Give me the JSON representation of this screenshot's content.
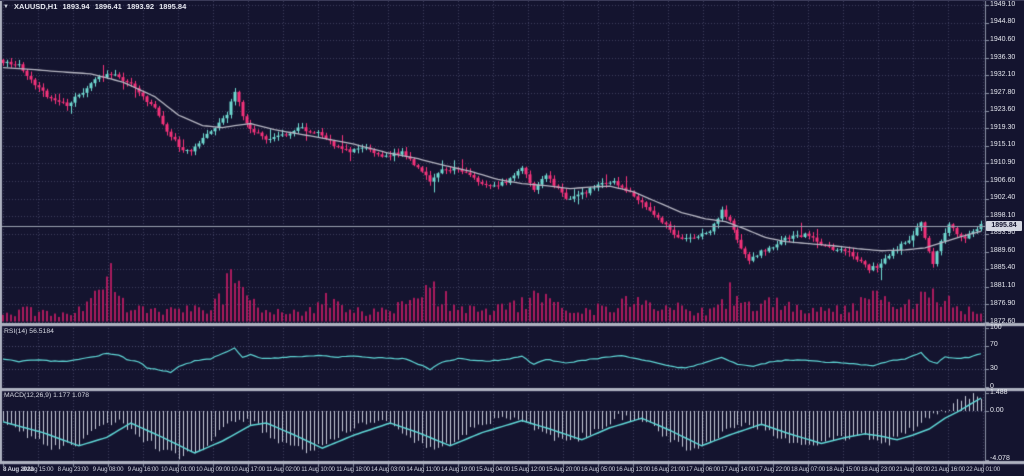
{
  "header": {
    "symbol_period": "XAUUSD,H1",
    "open": "1893.94",
    "high": "1896.41",
    "low": "1893.92",
    "close": "1895.84"
  },
  "colors": {
    "background": "#14142f",
    "grid": "#3d3d5e",
    "bull": "#6fd8d0",
    "bear": "#f4327a",
    "volume": "#a81b5d",
    "ma": "#b6b6c2",
    "indicator_line": "#5fd6d6",
    "histogram": "#c6cad8",
    "separator": "#aeb2c0",
    "axis_text": "#e6e8f0",
    "axis_line": "#8c93a6",
    "price_line": "#9aa0b0",
    "level_line": "#4a4a6e"
  },
  "chart_data": {
    "type": "candlestick",
    "symbol": "XAUUSD",
    "timeframe": "H1",
    "title": "XAUUSD,H1 1893.94 1896.41 1893.92 1895.84",
    "current_price": 1895.84,
    "price_axis": {
      "max": 1949.1,
      "min": 1872.6,
      "labels": [
        "1949.10",
        "1944.80",
        "1940.60",
        "1936.30",
        "1932.10",
        "1927.80",
        "1923.60",
        "1919.30",
        "1915.10",
        "1910.90",
        "1906.60",
        "1902.40",
        "1898.10",
        "1893.90",
        "1889.60",
        "1885.40",
        "1881.10",
        "1876.90",
        "1872.60"
      ],
      "values": [
        1949.1,
        1944.8,
        1940.6,
        1936.3,
        1932.1,
        1927.8,
        1923.6,
        1919.3,
        1915.1,
        1910.9,
        1906.6,
        1902.4,
        1898.1,
        1893.9,
        1889.6,
        1885.4,
        1881.1,
        1876.9,
        1872.6
      ]
    },
    "time_axis": {
      "labels": [
        "8 Aug 2023",
        "8 Aug 15:00",
        "8 Aug 23:00",
        "9 Aug 08:00",
        "9 Aug 16:00",
        "10 Aug 01:00",
        "10 Aug 09:00",
        "10 Aug 17:00",
        "11 Aug 02:00",
        "11 Aug 10:00",
        "11 Aug 18:00",
        "14 Aug 03:00",
        "14 Aug 11:00",
        "14 Aug 19:00",
        "15 Aug 04:00",
        "15 Aug 12:00",
        "15 Aug 20:00",
        "16 Aug 05:00",
        "16 Aug 13:00",
        "16 Aug 21:00",
        "17 Aug 06:00",
        "17 Aug 14:00",
        "17 Aug 22:00",
        "18 Aug 07:00",
        "18 Aug 15:00",
        "18 Aug 23:00",
        "21 Aug 08:00",
        "21 Aug 16:00",
        "22 Aug 01:00"
      ]
    },
    "candles": {
      "count": 246,
      "seed": 20230822,
      "close_waypoints": [
        [
          0,
          1935.5
        ],
        [
          4,
          1934.5
        ],
        [
          8,
          1929.5
        ],
        [
          12,
          1926.5
        ],
        [
          16,
          1925
        ],
        [
          20,
          1928
        ],
        [
          24,
          1932
        ],
        [
          28,
          1932.5
        ],
        [
          32,
          1930
        ],
        [
          35,
          1927
        ],
        [
          38,
          1924
        ],
        [
          41,
          1919
        ],
        [
          44,
          1915
        ],
        [
          47,
          1913.5
        ],
        [
          50,
          1917
        ],
        [
          53,
          1919.5
        ],
        [
          56,
          1922.5
        ],
        [
          58,
          1928.5
        ],
        [
          60,
          1922
        ],
        [
          63,
          1918.5
        ],
        [
          66,
          1917
        ],
        [
          70,
          1917.5
        ],
        [
          74,
          1919.5
        ],
        [
          79,
          1918
        ],
        [
          83,
          1915.5
        ],
        [
          87,
          1914
        ],
        [
          91,
          1914.5
        ],
        [
          96,
          1912.5
        ],
        [
          100,
          1913.5
        ],
        [
          104,
          1910
        ],
        [
          107,
          1906.5
        ],
        [
          110,
          1909
        ],
        [
          114,
          1909.5
        ],
        [
          118,
          1907
        ],
        [
          122,
          1905
        ],
        [
          126,
          1906.5
        ],
        [
          130,
          1910
        ],
        [
          133,
          1904.5
        ],
        [
          136,
          1908
        ],
        [
          141,
          1902.5
        ],
        [
          145,
          1903.5
        ],
        [
          149,
          1905.5
        ],
        [
          153,
          1906.5
        ],
        [
          157,
          1904
        ],
        [
          160,
          1901
        ],
        [
          164,
          1898
        ],
        [
          168,
          1894
        ],
        [
          171,
          1892.5
        ],
        [
          174,
          1893.5
        ],
        [
          177,
          1894.5
        ],
        [
          180,
          1899.5
        ],
        [
          182,
          1897
        ],
        [
          184,
          1892
        ],
        [
          187,
          1887.5
        ],
        [
          190,
          1889.5
        ],
        [
          193,
          1891
        ],
        [
          197,
          1893
        ],
        [
          201,
          1893.5
        ],
        [
          205,
          1891.5
        ],
        [
          208,
          1890
        ],
        [
          211,
          1889.5
        ],
        [
          214,
          1888
        ],
        [
          217,
          1885.5
        ],
        [
          219,
          1886
        ],
        [
          222,
          1889
        ],
        [
          225,
          1891
        ],
        [
          228,
          1893.5
        ],
        [
          230,
          1896.5
        ],
        [
          232,
          1890
        ],
        [
          233,
          1886.5
        ],
        [
          235,
          1892
        ],
        [
          237,
          1896.5
        ],
        [
          239,
          1893.5
        ],
        [
          241,
          1893
        ],
        [
          243,
          1894.5
        ],
        [
          245,
          1895.84
        ]
      ]
    },
    "ma_waypoints": [
      [
        0,
        1934
      ],
      [
        8,
        1933.5
      ],
      [
        14,
        1933
      ],
      [
        22,
        1932.5
      ],
      [
        30,
        1930.5
      ],
      [
        38,
        1927
      ],
      [
        44,
        1922.5
      ],
      [
        50,
        1920
      ],
      [
        55,
        1919.5
      ],
      [
        58,
        1920
      ],
      [
        62,
        1920.5
      ],
      [
        68,
        1919
      ],
      [
        74,
        1918
      ],
      [
        80,
        1917
      ],
      [
        88,
        1915.5
      ],
      [
        96,
        1913.5
      ],
      [
        104,
        1912
      ],
      [
        110,
        1910.5
      ],
      [
        117,
        1909
      ],
      [
        124,
        1907
      ],
      [
        130,
        1906
      ],
      [
        136,
        1905.5
      ],
      [
        142,
        1904.8
      ],
      [
        148,
        1905.2
      ],
      [
        152,
        1905.4
      ],
      [
        158,
        1904
      ],
      [
        164,
        1901.5
      ],
      [
        170,
        1899
      ],
      [
        176,
        1897.5
      ],
      [
        181,
        1896.8
      ],
      [
        186,
        1895
      ],
      [
        191,
        1893
      ],
      [
        196,
        1892
      ],
      [
        202,
        1891.5
      ],
      [
        208,
        1891
      ],
      [
        214,
        1890.3
      ],
      [
        220,
        1889.8
      ],
      [
        226,
        1890
      ],
      [
        231,
        1890.5
      ],
      [
        236,
        1892
      ],
      [
        240,
        1893.2
      ],
      [
        245,
        1894.5
      ]
    ],
    "volume_envelope": [
      [
        0,
        8
      ],
      [
        5,
        12
      ],
      [
        10,
        10
      ],
      [
        15,
        8
      ],
      [
        20,
        14
      ],
      [
        25,
        30
      ],
      [
        27,
        42
      ],
      [
        29,
        20
      ],
      [
        33,
        12
      ],
      [
        38,
        10
      ],
      [
        44,
        16
      ],
      [
        50,
        12
      ],
      [
        55,
        25
      ],
      [
        57,
        45
      ],
      [
        59,
        38
      ],
      [
        61,
        30
      ],
      [
        64,
        18
      ],
      [
        68,
        12
      ],
      [
        73,
        10
      ],
      [
        78,
        14
      ],
      [
        81,
        28
      ],
      [
        84,
        20
      ],
      [
        88,
        12
      ],
      [
        93,
        10
      ],
      [
        99,
        14
      ],
      [
        104,
        22
      ],
      [
        107,
        35
      ],
      [
        109,
        30
      ],
      [
        112,
        18
      ],
      [
        116,
        12
      ],
      [
        121,
        10
      ],
      [
        126,
        14
      ],
      [
        130,
        20
      ],
      [
        132,
        30
      ],
      [
        135,
        22
      ],
      [
        140,
        12
      ],
      [
        145,
        10
      ],
      [
        150,
        14
      ],
      [
        155,
        18
      ],
      [
        157,
        26
      ],
      [
        160,
        20
      ],
      [
        165,
        12
      ],
      [
        170,
        14
      ],
      [
        175,
        10
      ],
      [
        180,
        16
      ],
      [
        182,
        28
      ],
      [
        185,
        22
      ],
      [
        190,
        18
      ],
      [
        193,
        24
      ],
      [
        198,
        14
      ],
      [
        203,
        10
      ],
      [
        208,
        12
      ],
      [
        213,
        16
      ],
      [
        217,
        26
      ],
      [
        220,
        22
      ],
      [
        225,
        14
      ],
      [
        229,
        20
      ],
      [
        232,
        34
      ],
      [
        235,
        24
      ],
      [
        238,
        16
      ],
      [
        241,
        12
      ],
      [
        245,
        10
      ]
    ],
    "rsi": {
      "label": "RSI(14) 56.5184",
      "period": 14,
      "value": 56.5184,
      "axis_labels": [
        "100",
        "70",
        "30",
        "0"
      ],
      "axis_values": [
        100,
        70,
        30,
        0
      ],
      "levels": [
        70,
        30
      ],
      "waypoints": [
        [
          0,
          47
        ],
        [
          4,
          43
        ],
        [
          8,
          46
        ],
        [
          12,
          44
        ],
        [
          16,
          44
        ],
        [
          22,
          50
        ],
        [
          26,
          57
        ],
        [
          29,
          54
        ],
        [
          31,
          47
        ],
        [
          34,
          43
        ],
        [
          36,
          33
        ],
        [
          40,
          28
        ],
        [
          42,
          25
        ],
        [
          44,
          35
        ],
        [
          48,
          44
        ],
        [
          52,
          48
        ],
        [
          55,
          57
        ],
        [
          58,
          66
        ],
        [
          60,
          50
        ],
        [
          62,
          55
        ],
        [
          65,
          48
        ],
        [
          70,
          50
        ],
        [
          75,
          52
        ],
        [
          79,
          54
        ],
        [
          83,
          50
        ],
        [
          87,
          53
        ],
        [
          91,
          50
        ],
        [
          96,
          49
        ],
        [
          101,
          48
        ],
        [
          107,
          30
        ],
        [
          110,
          42
        ],
        [
          114,
          48
        ],
        [
          118,
          45
        ],
        [
          122,
          44
        ],
        [
          126,
          47
        ],
        [
          130,
          52
        ],
        [
          133,
          38
        ],
        [
          136,
          47
        ],
        [
          141,
          40
        ],
        [
          146,
          46
        ],
        [
          151,
          50
        ],
        [
          155,
          53
        ],
        [
          159,
          47
        ],
        [
          163,
          42
        ],
        [
          168,
          34
        ],
        [
          171,
          32
        ],
        [
          175,
          40
        ],
        [
          180,
          50
        ],
        [
          184,
          38
        ],
        [
          188,
          35
        ],
        [
          192,
          42
        ],
        [
          197,
          46
        ],
        [
          202,
          45
        ],
        [
          206,
          42
        ],
        [
          211,
          41
        ],
        [
          215,
          38
        ],
        [
          218,
          36
        ],
        [
          222,
          44
        ],
        [
          226,
          48
        ],
        [
          230,
          58
        ],
        [
          232,
          45
        ],
        [
          234,
          40
        ],
        [
          236,
          52
        ],
        [
          239,
          48
        ],
        [
          242,
          50
        ],
        [
          245,
          56.52
        ]
      ]
    },
    "macd": {
      "label": "MACD(12,26,9) 1.177 1.078",
      "fast": 12,
      "slow": 26,
      "signal_period": 9,
      "macd_value": 1.177,
      "signal_value": 1.078,
      "axis_labels": [
        "1.488",
        "0.00",
        "-4.078"
      ],
      "axis_values": [
        1.488,
        0,
        -4.078
      ],
      "macd_waypoints": [
        [
          0,
          -0.7
        ],
        [
          6,
          -2.2
        ],
        [
          12,
          -3.0
        ],
        [
          19,
          -2.6
        ],
        [
          24,
          -1.2
        ],
        [
          29,
          -0.8
        ],
        [
          36,
          -2.6
        ],
        [
          44,
          -3.9
        ],
        [
          50,
          -3.0
        ],
        [
          56,
          -1.0
        ],
        [
          60,
          -0.7
        ],
        [
          64,
          -1.3
        ],
        [
          70,
          -2.8
        ],
        [
          76,
          -3.4
        ],
        [
          82,
          -2.6
        ],
        [
          88,
          -1.2
        ],
        [
          94,
          -0.8
        ],
        [
          100,
          -1.6
        ],
        [
          106,
          -3.2
        ],
        [
          112,
          -2.8
        ],
        [
          118,
          -1.4
        ],
        [
          124,
          -0.7
        ],
        [
          130,
          -0.9
        ],
        [
          136,
          -2.0
        ],
        [
          142,
          -2.6
        ],
        [
          148,
          -1.6
        ],
        [
          154,
          -0.5
        ],
        [
          160,
          -0.8
        ],
        [
          166,
          -2.2
        ],
        [
          172,
          -3.3
        ],
        [
          178,
          -2.4
        ],
        [
          184,
          -1.0
        ],
        [
          190,
          -1.3
        ],
        [
          196,
          -2.4
        ],
        [
          202,
          -3.0
        ],
        [
          208,
          -2.4
        ],
        [
          214,
          -2.0
        ],
        [
          218,
          -2.3
        ],
        [
          222,
          -2.6
        ],
        [
          226,
          -1.8
        ],
        [
          230,
          -1.0
        ],
        [
          234,
          -0.3
        ],
        [
          238,
          0.5
        ],
        [
          241,
          1.1
        ],
        [
          243,
          1.45
        ],
        [
          245,
          1.18
        ]
      ],
      "signal_waypoints": [
        [
          0,
          -0.9
        ],
        [
          10,
          -1.8
        ],
        [
          19,
          -2.9
        ],
        [
          26,
          -2.2
        ],
        [
          32,
          -1.0
        ],
        [
          40,
          -2.2
        ],
        [
          48,
          -3.5
        ],
        [
          55,
          -2.5
        ],
        [
          62,
          -1.2
        ],
        [
          66,
          -1.0
        ],
        [
          73,
          -2.0
        ],
        [
          80,
          -3.1
        ],
        [
          88,
          -2.0
        ],
        [
          97,
          -1.0
        ],
        [
          104,
          -1.8
        ],
        [
          112,
          -2.9
        ],
        [
          120,
          -1.8
        ],
        [
          130,
          -0.8
        ],
        [
          137,
          -1.5
        ],
        [
          145,
          -2.4
        ],
        [
          152,
          -1.4
        ],
        [
          160,
          -0.6
        ],
        [
          167,
          -1.6
        ],
        [
          175,
          -2.9
        ],
        [
          182,
          -2.0
        ],
        [
          190,
          -1.1
        ],
        [
          197,
          -1.9
        ],
        [
          205,
          -2.7
        ],
        [
          211,
          -2.2
        ],
        [
          216,
          -1.9
        ],
        [
          220,
          -2.1
        ],
        [
          224,
          -2.4
        ],
        [
          228,
          -2.0
        ],
        [
          232,
          -1.5
        ],
        [
          236,
          -0.6
        ],
        [
          239,
          -0.1
        ],
        [
          242,
          0.5
        ],
        [
          245,
          1.08
        ]
      ]
    }
  }
}
